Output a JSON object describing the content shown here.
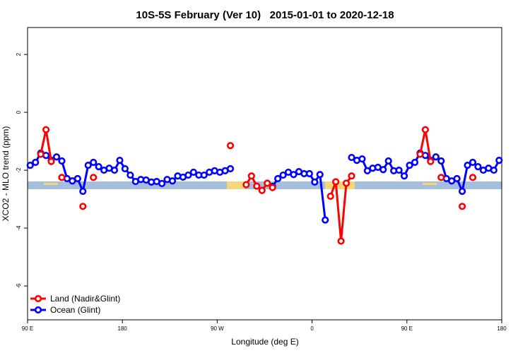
{
  "chart_data": {
    "type": "line",
    "title": "10S-5S February (Ver 10)   2015-01-01 to 2020-12-18",
    "xlabel": "Longitude (deg E)",
    "ylabel": "XCO2 - MLO trend (ppm)",
    "xlim": [
      90,
      540
    ],
    "xticks": [
      {
        "value": 90,
        "label": "90 E"
      },
      180,
      {
        "value": 270,
        "label": "90 W"
      },
      {
        "value": 360,
        "label": "0"
      },
      {
        "value": 450,
        "label": "90 E"
      },
      {
        "value": 540,
        "label": "180"
      }
    ],
    "ylim": [
      -7.17,
      2.93
    ],
    "yticks": [
      2,
      0,
      -2,
      -4,
      -6
    ],
    "legend": "bottom-left",
    "series": [
      {
        "name": "Ocean (Glint)",
        "color": "#0000ff",
        "x": [
          92.5,
          97.5,
          102.5,
          107.5,
          112.5,
          117.5,
          122.5,
          127.5,
          132.5,
          137.5,
          142.5,
          147.5,
          152.5,
          157.5,
          162.5,
          167.5,
          172.5,
          177.5,
          182.5,
          187.5,
          192.5,
          197.5,
          202.5,
          207.5,
          212.5,
          217.5,
          222.5,
          227.5,
          232.5,
          237.5,
          242.5,
          247.5,
          252.5,
          257.5,
          262.5,
          267.5,
          272.5,
          277.5,
          282.5,
          287.5,
          322.5,
          327.5,
          332.5,
          337.5,
          342.5,
          347.5,
          352.5,
          357.5,
          362.5,
          367.5,
          372.5,
          377.5,
          397.5,
          402.5,
          407.5,
          412.5,
          417.5,
          422.5,
          427.5,
          432.5,
          437.5,
          442.5,
          447.5,
          452.5,
          457.5,
          462.5,
          467.5,
          472.5,
          477.5,
          482.5,
          487.5,
          492.5,
          497.5,
          502.5,
          507.5,
          512.5,
          517.5,
          522.5,
          527.5,
          532.5,
          537.5
        ],
        "values": [
          -1.83,
          -1.73,
          -1.41,
          -1.49,
          -1.66,
          -1.54,
          -1.68,
          -2.29,
          -2.37,
          -2.29,
          -2.73,
          -1.83,
          -1.73,
          -1.88,
          -2.0,
          -1.93,
          -2.0,
          -1.66,
          -1.95,
          -2.17,
          -2.39,
          -2.32,
          -2.34,
          -2.41,
          -2.39,
          -2.46,
          -2.32,
          -2.37,
          -2.2,
          -2.24,
          -2.17,
          -2.07,
          -2.17,
          -2.17,
          -2.07,
          -2.02,
          -2.07,
          -2.02,
          -1.95,
          null,
          -2.56,
          -2.29,
          -2.17,
          -2.07,
          -2.15,
          -2.05,
          -2.12,
          -2.12,
          -2.41,
          -2.15,
          -3.72,
          null,
          -1.56,
          -1.66,
          -1.61,
          -2.02,
          -1.93,
          -1.9,
          -1.98,
          -1.68,
          -2.02,
          -2.0,
          -2.2,
          -1.83,
          -1.73,
          -1.41,
          -1.49,
          -1.66,
          -1.54,
          -1.68,
          -2.29,
          -2.37,
          -2.29,
          -2.73,
          -1.83,
          -1.73,
          -1.88,
          -2.0,
          -1.93,
          -2.0,
          -1.66
        ]
      },
      {
        "name": "Land (Nadir&Glint)",
        "color": "#ff0000",
        "x": [
          102.5,
          107.5,
          112.5,
          117.5,
          122.5,
          127.5,
          142.5,
          147.5,
          152.5,
          157.5,
          282.5,
          287.5,
          297.5,
          302.5,
          307.5,
          312.5,
          317.5,
          322.5,
          327.5,
          377.5,
          382.5,
          387.5,
          392.5,
          397.5,
          402.5,
          462.5,
          467.5,
          472.5,
          477.5,
          482.5,
          487.5,
          502.5,
          507.5,
          512.5
        ],
        "values": [
          -1.45,
          -0.6,
          -1.7,
          null,
          -2.25,
          null,
          -3.25,
          null,
          -2.25,
          null,
          -1.15,
          null,
          -2.5,
          -2.2,
          -2.55,
          -2.7,
          -2.45,
          -2.6,
          null,
          -2.9,
          -2.4,
          -4.45,
          -2.45,
          -2.2,
          null,
          -1.45,
          -0.6,
          -1.7,
          null,
          -2.25,
          null,
          -3.25,
          null,
          -2.25
        ]
      }
    ]
  }
}
